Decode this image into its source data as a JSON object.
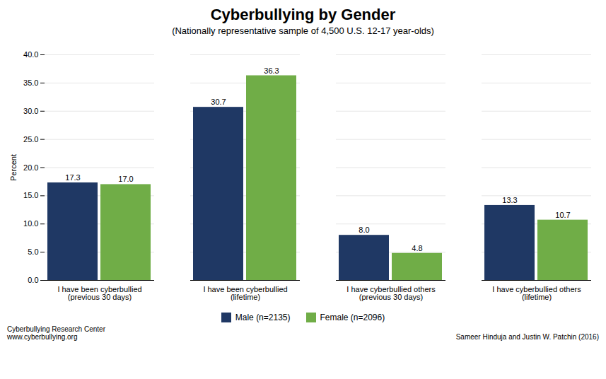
{
  "chart_data": {
    "type": "bar",
    "title": "Cyberbullying by Gender",
    "subtitle": "(Nationally representative sample of 4,500 U.S. 12-17 year-olds)",
    "categories": [
      "I have been cyberbullied\n(previous 30 days)",
      "I have been cyberbullied\n(lifetime)",
      "I have cyberbullied others\n(previous 30 days)",
      "I have cyberbullied others\n(lifetime)"
    ],
    "series": [
      {
        "name": "Male (n=2135)",
        "color": "#1F3864",
        "values": [
          17.3,
          30.7,
          8.0,
          13.3
        ],
        "value_labels": [
          "17.3",
          "30.7",
          "8.0",
          "13.3"
        ]
      },
      {
        "name": "Female (n=2096)",
        "color": "#70AD47",
        "values": [
          17.0,
          36.3,
          4.8,
          10.7
        ],
        "value_labels": [
          "17.0",
          "36.3",
          "4.8",
          "10.7"
        ]
      }
    ],
    "ylabel": "Percent",
    "ylim": [
      0,
      40
    ],
    "yticks": [
      {
        "value": 0,
        "label": "0.0"
      },
      {
        "value": 5,
        "label": "5.0"
      },
      {
        "value": 10,
        "label": "10.0"
      },
      {
        "value": 15,
        "label": "15.0"
      },
      {
        "value": 20,
        "label": "20.0"
      },
      {
        "value": 25,
        "label": "25.0"
      },
      {
        "value": 30,
        "label": "30.0"
      },
      {
        "value": 35,
        "label": "35.0"
      },
      {
        "value": 40,
        "label": "40.0"
      }
    ],
    "grid": true,
    "data_labels": true,
    "legend": "bottom",
    "annotations": [
      "Cyberbullying Research Center",
      "www.cyberbullying.org",
      "Sameer Hinduja and Justin W. Patchin (2016)"
    ]
  }
}
